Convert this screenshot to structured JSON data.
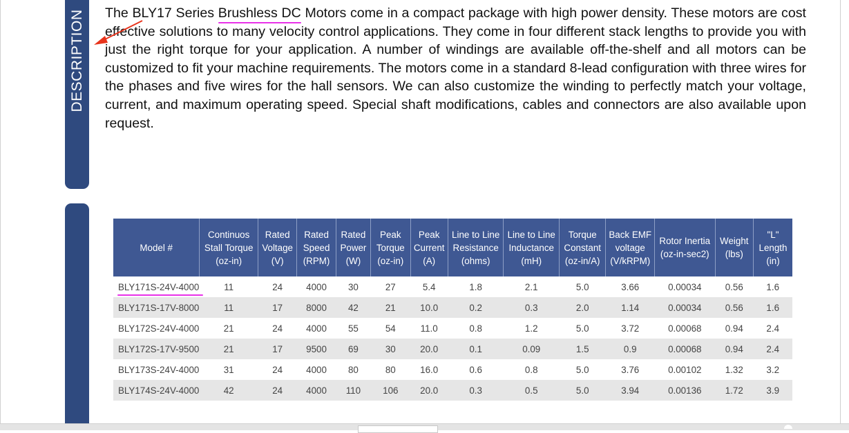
{
  "sidebar": {
    "label": "DESCRIPTION"
  },
  "description": {
    "part1": "The ",
    "model_series": "BLY17",
    "part2": " Series ",
    "highlight": "Brushless DC",
    "part3": " Motors come in a compact package with high power density. These motors are cost effective solutions to many velocity control applications. They come in four different stack lengths to provide you with just the right torque for your application. A number of windings are available off-the-shelf and all motors can be customized to fit your machine requirements. The motors come in a standard 8-lead configuration with three wires for the phases and five wires for the hall sensors. We can also customize the winding to perfectly match your voltage, current, and maximum operating speed. Special shaft modifications, cables and connectors are also available upon request."
  },
  "annotations": {
    "arrow_color": "#e8341c",
    "highlight_color": "#e830e8"
  },
  "colors": {
    "header_bg": "#3f5893",
    "sidebar_bg": "#2f4a7f",
    "row_shade": "#e6e6e6"
  },
  "table": {
    "headers": [
      "Model #",
      "Continuos Stall Torque (oz-in)",
      "Rated Voltage (V)",
      "Rated Speed (RPM)",
      "Rated Power (W)",
      "Peak Torque (oz-in)",
      "Peak Current (A)",
      "Line to Line Resistance (ohms)",
      "Line to Line Inductance (mH)",
      "Torque Constant (oz-in/A)",
      "Back EMF voltage (V/kRPM)",
      "Rotor Inertia (oz-in-sec2)",
      "Weight (lbs)",
      "\"L\" Length (in)"
    ],
    "rows": [
      [
        "BLY171S-24V-4000",
        "11",
        "24",
        "4000",
        "30",
        "27",
        "5.4",
        "1.8",
        "2.1",
        "5.0",
        "3.66",
        "0.00034",
        "0.56",
        "1.6"
      ],
      [
        "BLY171S-17V-8000",
        "11",
        "17",
        "8000",
        "42",
        "21",
        "10.0",
        "0.2",
        "0.3",
        "2.0",
        "1.14",
        "0.00034",
        "0.56",
        "1.6"
      ],
      [
        "BLY172S-24V-4000",
        "21",
        "24",
        "4000",
        "55",
        "54",
        "11.0",
        "0.8",
        "1.2",
        "5.0",
        "3.72",
        "0.00068",
        "0.94",
        "2.4"
      ],
      [
        "BLY172S-17V-9500",
        "21",
        "17",
        "9500",
        "69",
        "30",
        "20.0",
        "0.1",
        "0.09",
        "1.5",
        "0.9",
        "0.00068",
        "0.94",
        "2.4"
      ],
      [
        "BLY173S-24V-4000",
        "31",
        "24",
        "4000",
        "80",
        "80",
        "16.0",
        "0.6",
        "0.8",
        "5.0",
        "3.76",
        "0.00102",
        "1.32",
        "3.2"
      ],
      [
        "BLY174S-24V-4000",
        "42",
        "24",
        "4000",
        "110",
        "106",
        "20.0",
        "0.3",
        "0.5",
        "5.0",
        "3.94",
        "0.00136",
        "1.72",
        "3.9"
      ]
    ]
  }
}
